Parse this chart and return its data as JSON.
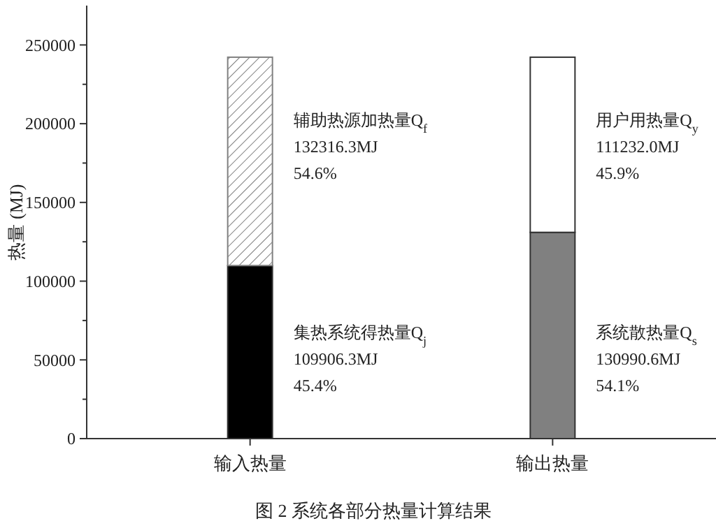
{
  "chart_data": {
    "type": "bar",
    "stacked": true,
    "ylabel": "热量 (MJ)",
    "categories": [
      "输入热量",
      "输出热量"
    ],
    "series": [
      {
        "colors": [
          "#000000",
          "#808080"
        ],
        "values": [
          109906.3,
          130990.6
        ]
      },
      {
        "colors": [
          "#808080",
          "#ffffff"
        ],
        "values": [
          132316.3,
          111232.0
        ]
      }
    ],
    "ylim": [
      0,
      275000
    ],
    "yticks": [
      0,
      {
        "value": 25000,
        "label": null
      },
      50000,
      {
        "value": 75000,
        "label": null
      },
      100000,
      {
        "value": 125000,
        "label": null
      },
      150000,
      {
        "value": 175000,
        "label": null
      },
      200000,
      {
        "value": 225000,
        "label": null
      },
      250000
    ],
    "annotations": [
      "辅助热源加热量Q$_{f}$\n132316.3MJ\n54.6%",
      "用户用热量Q$_{y}$\n111232.0MJ\n45.9%",
      "集热系统得热量Q$_{j}$\n109906.3MJ\n45.4%",
      "系统散热量Q$_{s}$\n130990.6MJ\n54.1%",
      "图 2  系统各部分热量计算结果"
    ]
  }
}
